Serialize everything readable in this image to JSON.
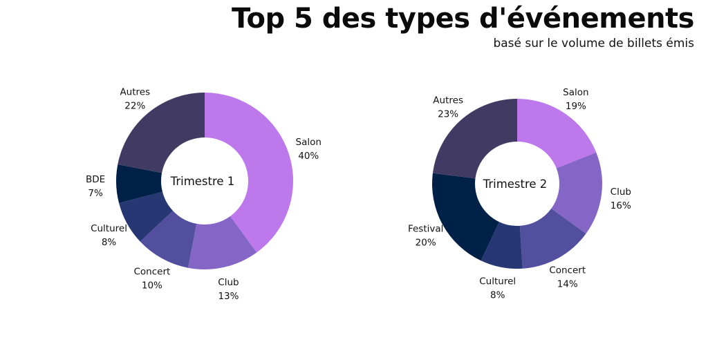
{
  "title": "Top 5 des types d'événements",
  "subtitle": "basé sur le volume de billets émis",
  "chart_data": [
    {
      "type": "pie",
      "donut": true,
      "center_label": "Trimestre 1",
      "slices": [
        {
          "label": "Salon",
          "value": 40,
          "value_label": "40%",
          "color": "#BD78EC"
        },
        {
          "label": "Club",
          "value": 13,
          "value_label": "13%",
          "color": "#8466C7"
        },
        {
          "label": "Concert",
          "value": 10,
          "value_label": "10%",
          "color": "#524F9F"
        },
        {
          "label": "Culturel",
          "value": 8,
          "value_label": "8%",
          "color": "#263774"
        },
        {
          "label": "BDE",
          "value": 7,
          "value_label": "7%",
          "color": "#002147"
        },
        {
          "label": "Autres",
          "value": 22,
          "value_label": "22%",
          "color": "#413B64"
        }
      ]
    },
    {
      "type": "pie",
      "donut": true,
      "center_label": "Trimestre 2",
      "slices": [
        {
          "label": "Salon",
          "value": 19,
          "value_label": "19%",
          "color": "#BD78EC"
        },
        {
          "label": "Club",
          "value": 16,
          "value_label": "16%",
          "color": "#8466C7"
        },
        {
          "label": "Concert",
          "value": 14,
          "value_label": "14%",
          "color": "#524F9F"
        },
        {
          "label": "Culturel",
          "value": 8,
          "value_label": "8%",
          "color": "#263774"
        },
        {
          "label": "Festival",
          "value": 20,
          "value_label": "20%",
          "color": "#002147"
        },
        {
          "label": "Autres",
          "value": 23,
          "value_label": "23%",
          "color": "#413B64"
        }
      ]
    }
  ]
}
